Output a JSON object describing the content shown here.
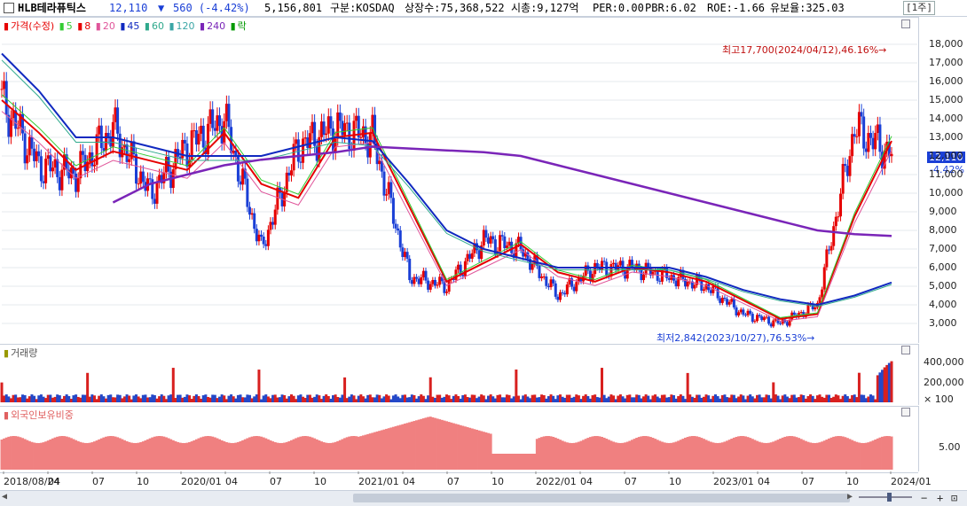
{
  "header": {
    "stock_name": "HLB테라퓨틱스",
    "price": "12,110",
    "change_arrow": "▼",
    "change": "560 (-4.42%)",
    "volume": "5,156,801",
    "market": "구분:KOSDAQ",
    "shares": "상장수:75,368,522",
    "market_cap": "시총:9,127억",
    "per": "PER:0.00",
    "pbr": "PBR:6.02",
    "roe": "ROE:-1.66",
    "float": "유보율:325.03",
    "period": "[1주]"
  },
  "colors": {
    "up": "#e60000",
    "down": "#1a3fd6",
    "ma5": "#33cc33",
    "ma8": "#e60000",
    "ma20": "#e0559a",
    "ma45": "#1029c0",
    "ma60": "#2fa98c",
    "ma120": "#3aa6a6",
    "ma240": "#7a25b8",
    "volume_up": "#d8201f",
    "volume_down": "#2448c8",
    "foreign": "#f08080"
  },
  "legend": {
    "price": {
      "label": "가격(수정)"
    },
    "ma": [
      {
        "label": "5",
        "color": "#33cc33"
      },
      {
        "label": "8",
        "color": "#e60000"
      },
      {
        "label": "20",
        "color": "#e0559a"
      },
      {
        "label": "45",
        "color": "#1029c0"
      },
      {
        "label": "60",
        "color": "#2fa98c"
      },
      {
        "label": "120",
        "color": "#3aa6a6"
      },
      {
        "label": "240",
        "color": "#7a25b8"
      },
      {
        "label": "락",
        "color": "#009900"
      }
    ],
    "volume": "거래량",
    "foreign": "외국인보유비중"
  },
  "annotations": {
    "high": "최고17,700(2024/04/12),46.16%→",
    "low": "최저2,842(2023/10/27),76.53%→",
    "last_price": "12,110",
    "last_change": "-4.42%"
  },
  "chart_data": [
    {
      "type": "candlestick",
      "title": "",
      "y_ticks": [
        "18,000",
        "17,000",
        "16,000",
        "15,000",
        "14,000",
        "13,000",
        "12,000",
        "11,000",
        "10,000",
        "9,000",
        "8,000",
        "7,000",
        "6,000",
        "5,000",
        "4,000",
        "3,000"
      ],
      "ylim": [
        2500,
        19000
      ],
      "x_ticks": [
        "2018/08/24",
        "04",
        "07",
        "10",
        "2020/01",
        "04",
        "07",
        "10",
        "2021/01",
        "04",
        "07",
        "10",
        "2022/01",
        "04",
        "07",
        "10",
        "2023/01",
        "04",
        "07",
        "10",
        "2024/01"
      ],
      "x": [
        "2018-08",
        "2018-11",
        "2019-02",
        "2019-05",
        "2019-08",
        "2019-11",
        "2020-02",
        "2020-05",
        "2020-08",
        "2020-11",
        "2021-02",
        "2021-05",
        "2021-08",
        "2021-11",
        "2022-02",
        "2022-05",
        "2022-08",
        "2022-11",
        "2023-02",
        "2023-05",
        "2023-08",
        "2023-10",
        "2024-01",
        "2024-03",
        "2024-04"
      ],
      "series": [
        {
          "name": "가격(수정)",
          "values": [
            15000,
            11500,
            11000,
            13500,
            10000,
            12500,
            14000,
            7000,
            12500,
            13500,
            13000,
            5500,
            5000,
            7500,
            7000,
            4500,
            6000,
            6000,
            5500,
            5000,
            3500,
            3000,
            4000,
            13500,
            12110
          ]
        },
        {
          "name": "45",
          "values": [
            17500,
            15500,
            13000,
            13000,
            12500,
            12000,
            12000,
            12000,
            12500,
            13000,
            12800,
            10500,
            8000,
            7000,
            6500,
            6000,
            6000,
            6000,
            6000,
            5500,
            4800,
            4300,
            4000,
            4500,
            5200
          ]
        },
        {
          "name": "240",
          "values": [
            null,
            null,
            null,
            9500,
            10500,
            11000,
            11500,
            11800,
            12000,
            12200,
            12500,
            12400,
            12300,
            12200,
            12000,
            11500,
            11000,
            10500,
            10000,
            9500,
            9000,
            8500,
            8000,
            7800,
            7700
          ]
        }
      ]
    },
    {
      "type": "bar",
      "title": "",
      "y_ticks": [
        "400,000",
        "200,000",
        "× 100"
      ],
      "ylim": [
        0,
        500000
      ]
    },
    {
      "type": "area",
      "title": "",
      "y_ticks": [
        "5.00"
      ]
    }
  ],
  "scroll": {
    "zoom_out": "−",
    "zoom_in": "+",
    "fit": "⊡"
  }
}
